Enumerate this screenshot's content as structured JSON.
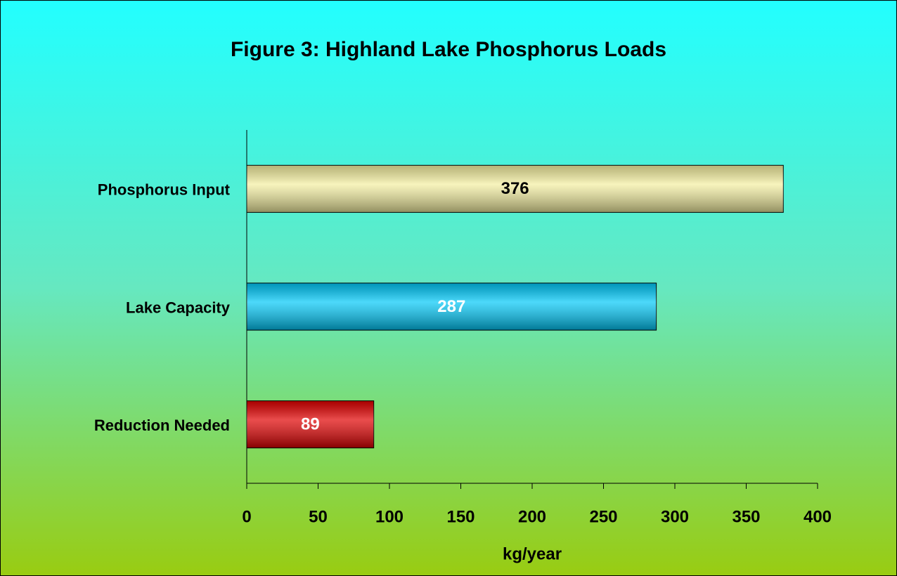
{
  "chart_data": {
    "type": "hbar",
    "title": "Figure 3: Highland Lake Phosphorus Loads",
    "xlabel": "kg/year",
    "categories": [
      "Phosphorus Input",
      "Lake Capacity",
      "Reduction Needed"
    ],
    "values": [
      376,
      287,
      89
    ],
    "colors": [
      "#f4efa0",
      "#00c8f8",
      "#e00000"
    ],
    "label_colors": [
      "#000000",
      "#ffffff",
      "#ffffff"
    ],
    "xlim": [
      0,
      400
    ],
    "xticks": [
      0,
      50,
      100,
      150,
      200,
      250,
      300,
      350,
      400
    ]
  }
}
